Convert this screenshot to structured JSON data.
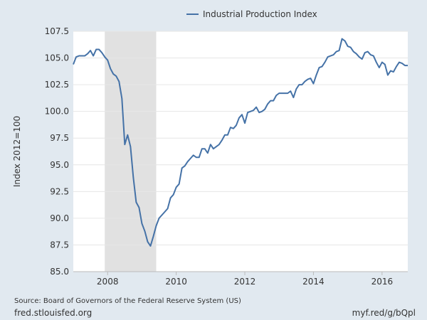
{
  "chart_data": {
    "type": "line",
    "ylabel": "Index 2012=100",
    "ylim": [
      85.0,
      107.5
    ],
    "yticks": [
      "85.0",
      "87.5",
      "90.0",
      "92.5",
      "95.0",
      "97.5",
      "100.0",
      "102.5",
      "105.0",
      "107.5"
    ],
    "xlim": [
      2007.0,
      2016.75
    ],
    "xticks": [
      "2008",
      "2010",
      "2012",
      "2014",
      "2016"
    ],
    "grid": "horizontal",
    "legend_position": "top",
    "recession_band": {
      "start": 2007.917,
      "end": 2009.417,
      "color": "#e1e1e1"
    },
    "series": [
      {
        "name": "Industrial Production Index",
        "color": "#4572a7",
        "x": [
          2007.0,
          2007.083,
          2007.167,
          2007.25,
          2007.333,
          2007.417,
          2007.5,
          2007.583,
          2007.667,
          2007.75,
          2007.833,
          2007.917,
          2008.0,
          2008.083,
          2008.167,
          2008.25,
          2008.333,
          2008.417,
          2008.5,
          2008.583,
          2008.667,
          2008.75,
          2008.833,
          2008.917,
          2009.0,
          2009.083,
          2009.167,
          2009.25,
          2009.333,
          2009.417,
          2009.5,
          2009.583,
          2009.667,
          2009.75,
          2009.833,
          2009.917,
          2010.0,
          2010.083,
          2010.167,
          2010.25,
          2010.333,
          2010.417,
          2010.5,
          2010.583,
          2010.667,
          2010.75,
          2010.833,
          2010.917,
          2011.0,
          2011.083,
          2011.167,
          2011.25,
          2011.333,
          2011.417,
          2011.5,
          2011.583,
          2011.667,
          2011.75,
          2011.833,
          2011.917,
          2012.0,
          2012.083,
          2012.167,
          2012.25,
          2012.333,
          2012.417,
          2012.5,
          2012.583,
          2012.667,
          2012.75,
          2012.833,
          2012.917,
          2013.0,
          2013.083,
          2013.167,
          2013.25,
          2013.333,
          2013.417,
          2013.5,
          2013.583,
          2013.667,
          2013.75,
          2013.833,
          2013.917,
          2014.0,
          2014.083,
          2014.167,
          2014.25,
          2014.333,
          2014.417,
          2014.5,
          2014.583,
          2014.667,
          2014.75,
          2014.833,
          2014.917,
          2015.0,
          2015.083,
          2015.167,
          2015.25,
          2015.333,
          2015.417,
          2015.5,
          2015.583,
          2015.667,
          2015.75,
          2015.833,
          2015.917,
          2016.0,
          2016.083,
          2016.167,
          2016.25,
          2016.333,
          2016.417,
          2016.5,
          2016.583,
          2016.667,
          2016.75
        ],
        "values": [
          104.4,
          105.1,
          105.2,
          105.2,
          105.2,
          105.4,
          105.7,
          105.2,
          105.8,
          105.8,
          105.5,
          105.1,
          104.8,
          104.0,
          103.5,
          103.3,
          102.8,
          101.2,
          96.9,
          97.8,
          96.7,
          93.8,
          91.5,
          91.0,
          89.5,
          88.8,
          87.8,
          87.4,
          88.3,
          89.3,
          90.0,
          90.3,
          90.6,
          90.9,
          91.9,
          92.2,
          92.9,
          93.2,
          94.7,
          94.9,
          95.3,
          95.6,
          95.9,
          95.7,
          95.7,
          96.5,
          96.5,
          96.1,
          96.9,
          96.5,
          96.7,
          96.9,
          97.3,
          97.8,
          97.8,
          98.5,
          98.4,
          98.7,
          99.4,
          99.7,
          98.9,
          99.9,
          100.0,
          100.1,
          100.4,
          99.9,
          100.0,
          100.2,
          100.7,
          101.0,
          101.0,
          101.5,
          101.7,
          101.7,
          101.7,
          101.7,
          101.9,
          101.3,
          102.1,
          102.5,
          102.5,
          102.8,
          103.0,
          103.1,
          102.6,
          103.4,
          104.1,
          104.2,
          104.6,
          105.1,
          105.2,
          105.3,
          105.6,
          105.7,
          106.8,
          106.6,
          106.1,
          106.0,
          105.6,
          105.4,
          105.1,
          104.9,
          105.5,
          105.6,
          105.3,
          105.2,
          104.6,
          104.1,
          104.6,
          104.4,
          103.4,
          103.8,
          103.7,
          104.2,
          104.6,
          104.5,
          104.3,
          104.3
        ]
      }
    ]
  },
  "footer": {
    "source": "Source: Board of Governors of the Federal Reserve System (US)",
    "site": "fred.stlouisfed.org",
    "short_url": "myf.red/g/bQpl"
  }
}
